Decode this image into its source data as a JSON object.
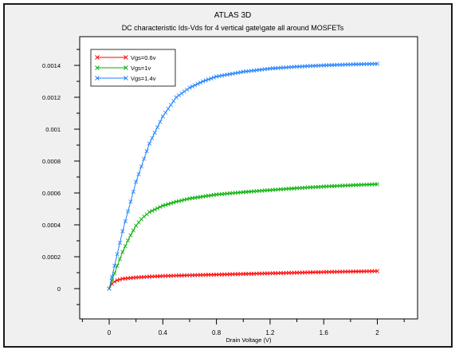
{
  "chart_data": {
    "type": "line",
    "title": "ATLAS 3D",
    "subtitle": "DC characteristic Ids-Vds for 4 vertical gate\\gate all around MOSFETs",
    "xlabel": "Drain Voltage (V)",
    "ylabel": "",
    "xlim": [
      -0.22,
      2.3
    ],
    "ylim": [
      -0.00019,
      0.00158
    ],
    "x_ticks": [
      0,
      0.4,
      0.8,
      1.2,
      1.6,
      2
    ],
    "x_tick_labels": [
      "0",
      "0.4",
      "0.8",
      "1.2",
      "1.6",
      "2"
    ],
    "y_ticks": [
      0,
      0.0002,
      0.0004,
      0.0006,
      0.0008,
      0.001,
      0.0012,
      0.0014
    ],
    "y_tick_labels": [
      "0",
      "0.0002",
      "0.0004",
      "0.0006",
      "0.0008",
      "0.001",
      "0.0012",
      "0.0014"
    ],
    "grid": false,
    "legend_position": "top-left",
    "marker": "x",
    "series": [
      {
        "name": "Vgs=0.6v",
        "color": "#ff0000",
        "x": [
          0,
          0.02,
          0.05,
          0.1,
          0.2,
          0.3,
          0.4,
          0.6,
          0.8,
          1.0,
          1.2,
          1.4,
          1.6,
          1.8,
          2.0
        ],
        "y": [
          0,
          3e-05,
          5e-05,
          6.2e-05,
          7e-05,
          7.5e-05,
          7.9e-05,
          8.4e-05,
          8.8e-05,
          9.2e-05,
          9.6e-05,
          0.0001,
          0.000104,
          0.000107,
          0.00011
        ]
      },
      {
        "name": "Vgs=1v",
        "color": "#00b000",
        "x": [
          0,
          0.05,
          0.1,
          0.15,
          0.2,
          0.25,
          0.3,
          0.4,
          0.5,
          0.6,
          0.8,
          1.0,
          1.2,
          1.4,
          1.6,
          1.8,
          2.0
        ],
        "y": [
          0,
          0.00012,
          0.00023,
          0.00032,
          0.000395,
          0.000445,
          0.00048,
          0.00052,
          0.000545,
          0.000565,
          0.00059,
          0.000605,
          0.000618,
          0.00063,
          0.00064,
          0.000648,
          0.000655
        ]
      },
      {
        "name": "Vgs=1.4v",
        "color": "#1f7fff",
        "x": [
          0,
          0.1,
          0.2,
          0.3,
          0.4,
          0.5,
          0.6,
          0.7,
          0.8,
          1.0,
          1.2,
          1.4,
          1.6,
          1.8,
          2.0
        ],
        "y": [
          0,
          0.00036,
          0.00067,
          0.00091,
          0.00108,
          0.0012,
          0.00126,
          0.0013,
          0.00133,
          0.00136,
          0.00138,
          0.001392,
          0.0014,
          0.001406,
          0.00141
        ]
      }
    ]
  }
}
